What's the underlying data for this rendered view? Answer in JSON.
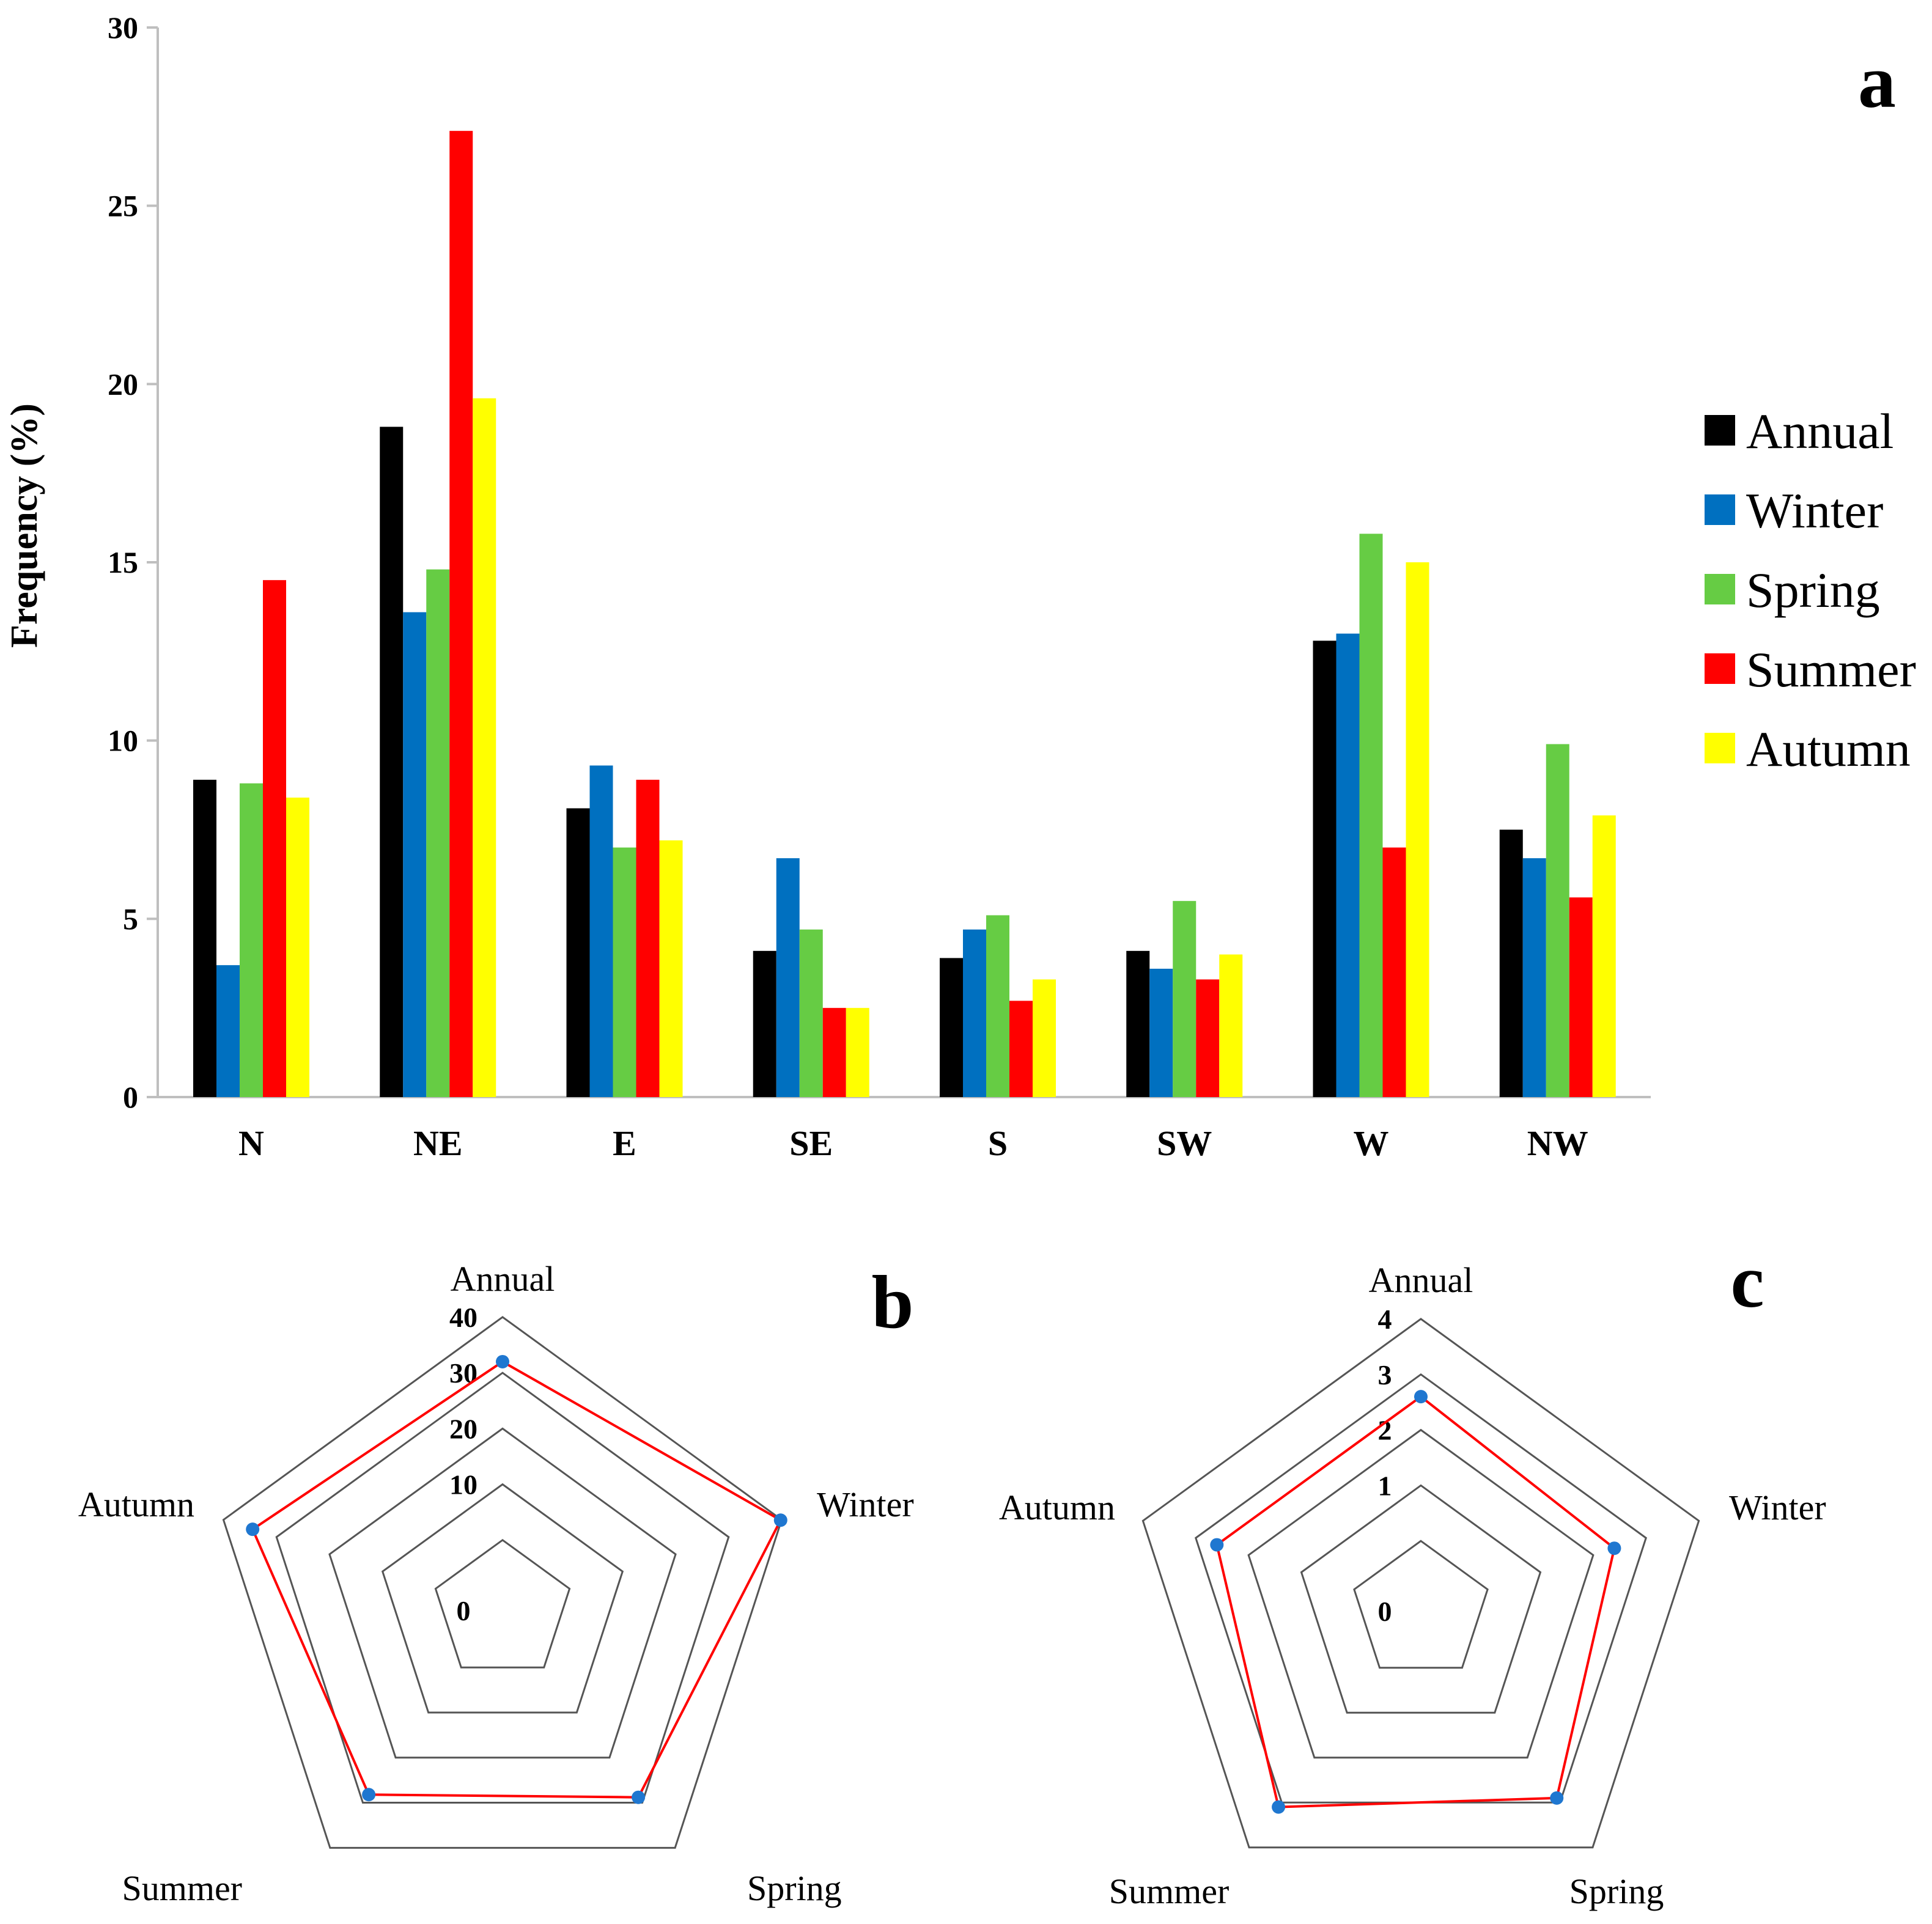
{
  "chart_data": [
    {
      "panel": "a",
      "type": "bar",
      "ylabel": "Frequency (%)",
      "xlabel": "",
      "ylim": [
        0,
        30
      ],
      "yticks": [
        0,
        5,
        10,
        15,
        20,
        25,
        30
      ],
      "categories": [
        "N",
        "NE",
        "E",
        "SE",
        "S",
        "SW",
        "W",
        "NW"
      ],
      "legend_position": "right",
      "series": [
        {
          "name": "Annual",
          "color": "#000000",
          "values": [
            8.9,
            18.8,
            8.1,
            4.1,
            3.9,
            4.1,
            12.8,
            7.5
          ]
        },
        {
          "name": "Winter",
          "color": "#0070C0",
          "values": [
            3.7,
            13.6,
            9.3,
            6.7,
            4.7,
            3.6,
            13.0,
            6.7
          ]
        },
        {
          "name": "Spring",
          "color": "#66CC44",
          "values": [
            8.8,
            14.8,
            7.0,
            4.7,
            5.1,
            5.5,
            15.8,
            9.9
          ]
        },
        {
          "name": "Summer",
          "color": "#FF0000",
          "values": [
            14.5,
            27.1,
            8.9,
            2.5,
            2.7,
            3.3,
            7.0,
            5.6
          ]
        },
        {
          "name": "Autumn",
          "color": "#FFFF00",
          "values": [
            8.4,
            19.6,
            7.2,
            2.5,
            3.3,
            4.0,
            15.0,
            7.9
          ]
        }
      ]
    },
    {
      "panel": "b",
      "type": "radar",
      "axes": [
        "Annual",
        "Winter",
        "Spring",
        "Summer",
        "Autumn"
      ],
      "rticks": [
        0,
        10,
        20,
        30,
        40
      ],
      "rlim": [
        0,
        40
      ],
      "values": [
        32,
        39.8,
        28.8,
        28.2,
        34.5
      ],
      "line_color": "#FF0000",
      "marker_color": "#1F77D0"
    },
    {
      "panel": "c",
      "type": "radar",
      "axes": [
        "Annual",
        "Winter",
        "Spring",
        "Summer",
        "Autumn"
      ],
      "rticks": [
        0,
        1,
        2,
        3,
        4
      ],
      "rlim": [
        0,
        4
      ],
      "values": [
        2.6,
        2.4,
        2.9,
        3.1,
        2.6
      ],
      "line_color": "#FF0000",
      "marker_color": "#1F77D0"
    }
  ]
}
